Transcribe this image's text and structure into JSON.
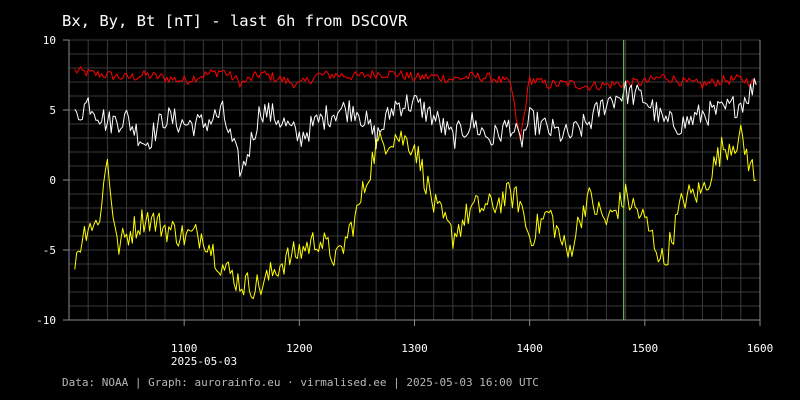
{
  "chart_data": {
    "type": "line",
    "title": "Bx, By, Bt [nT] - last 6h from DSCOVR",
    "date_label": "2025-05-03",
    "footer": "Data: NOAA | Graph: aurorainfo.eu · virmalised.ee | 2025-05-03 16:00 UTC",
    "xlim": [
      "10:00",
      "16:00"
    ],
    "ylim": [
      -10,
      10
    ],
    "x_ticks": [
      "1100",
      "1200",
      "1300",
      "1400",
      "1500",
      "1600"
    ],
    "y_ticks": [
      "10",
      "5",
      "0",
      "-5",
      "-10"
    ],
    "grid": true,
    "marker_time": "14:49",
    "colors": {
      "bt": "#ff0000",
      "bx": "#ffffff",
      "by": "#ffff00",
      "marker": "#7fdc6f",
      "grid": "#3a3a3a",
      "axes": "#8a8a8a"
    },
    "series": [
      {
        "key": "bt",
        "x": [
          "10:03",
          "10:12",
          "10:20",
          "10:30",
          "10:40",
          "10:50",
          "11:00",
          "11:10",
          "11:20",
          "11:30",
          "11:40",
          "11:50",
          "12:00",
          "12:10",
          "12:20",
          "12:30",
          "12:40",
          "12:50",
          "13:00",
          "13:10",
          "13:20",
          "13:30",
          "13:40",
          "13:50",
          "13:55",
          "14:00",
          "14:10",
          "14:20",
          "14:30",
          "14:40",
          "14:50",
          "15:00",
          "15:10",
          "15:20",
          "15:30",
          "15:40",
          "15:50",
          "15:58"
        ],
        "values": [
          7.8,
          7.6,
          7.5,
          7.3,
          7.5,
          7.3,
          7.1,
          7.5,
          7.8,
          6.9,
          7.6,
          7.2,
          6.8,
          7.5,
          7.5,
          7.4,
          7.6,
          7.6,
          7.3,
          7.4,
          7.2,
          7.4,
          7.3,
          6.9,
          2.8,
          7.2,
          6.8,
          6.9,
          6.7,
          6.8,
          6.9,
          7.0,
          7.4,
          7.0,
          6.8,
          7.1,
          7.2,
          6.9
        ]
      },
      {
        "key": "bx",
        "x": [
          "10:03",
          "10:10",
          "10:20",
          "10:30",
          "10:40",
          "10:50",
          "11:00",
          "11:10",
          "11:20",
          "11:30",
          "11:40",
          "11:50",
          "12:00",
          "12:10",
          "12:20",
          "12:30",
          "12:40",
          "12:50",
          "13:00",
          "13:10",
          "13:20",
          "13:30",
          "13:40",
          "13:50",
          "13:55",
          "14:00",
          "14:10",
          "14:20",
          "14:30",
          "14:40",
          "14:50",
          "15:00",
          "15:10",
          "15:20",
          "15:30",
          "15:40",
          "15:50",
          "15:58"
        ],
        "values": [
          4.4,
          5.6,
          4.1,
          4.4,
          2.6,
          4.5,
          4.0,
          4.0,
          4.8,
          0.5,
          5.1,
          4.3,
          3.0,
          4.2,
          5.0,
          5.1,
          3.0,
          5.4,
          5.5,
          4.5,
          3.0,
          4.1,
          2.9,
          4.0,
          2.6,
          4.3,
          3.6,
          3.1,
          4.0,
          5.6,
          6.3,
          5.8,
          4.1,
          4.0,
          4.7,
          4.9,
          5.5,
          6.8
        ]
      },
      {
        "key": "by",
        "x": [
          "10:03",
          "10:10",
          "10:15",
          "10:20",
          "10:25",
          "10:30",
          "10:40",
          "10:50",
          "11:00",
          "11:10",
          "11:20",
          "11:30",
          "11:40",
          "11:50",
          "12:00",
          "12:10",
          "12:20",
          "12:30",
          "12:40",
          "12:50",
          "13:00",
          "13:10",
          "13:20",
          "13:30",
          "13:40",
          "13:50",
          "13:55",
          "14:00",
          "14:10",
          "14:20",
          "14:30",
          "14:40",
          "14:50",
          "15:00",
          "15:10",
          "15:20",
          "15:30",
          "15:40",
          "15:50",
          "15:58"
        ],
        "values": [
          -5.6,
          -3.0,
          -3.3,
          1.5,
          -4.8,
          -4.0,
          -2.6,
          -3.4,
          -4.0,
          -3.9,
          -6.2,
          -7.4,
          -7.6,
          -6.0,
          -5.1,
          -4.2,
          -5.7,
          -2.4,
          2.4,
          3.2,
          2.5,
          -1.8,
          -4.0,
          -2.0,
          -1.9,
          -1.0,
          -1.6,
          -4.1,
          -2.3,
          -5.4,
          -1.2,
          -3.0,
          -1.2,
          -2.9,
          -6.0,
          -1.3,
          -0.8,
          2.2,
          3.0,
          0.0
        ]
      }
    ]
  }
}
